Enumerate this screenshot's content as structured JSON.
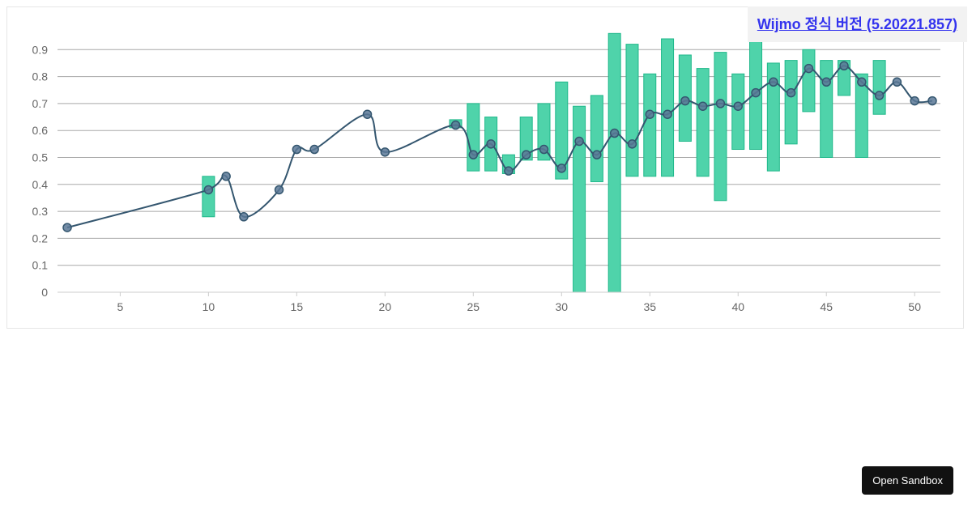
{
  "header": {
    "version_link": "Wijmo 정식 버전 (5.20221.857)"
  },
  "footer": {
    "sandbox_button": "Open Sandbox"
  },
  "colors": {
    "line": "#34566f",
    "point": "#5b7897",
    "bar_fill": "#4fd3aa",
    "bar_stroke": "#1fb88a",
    "grid": "#a8a8a8",
    "axis": "#cccccc",
    "tick": "#666666"
  },
  "chart_data": {
    "type": "line",
    "xlim": [
      0,
      51.5
    ],
    "ylim": [
      0,
      1
    ],
    "x_ticks": [
      5,
      10,
      15,
      20,
      25,
      30,
      35,
      40,
      45,
      50
    ],
    "y_ticks": [
      0,
      0.1,
      0.2,
      0.3,
      0.4,
      0.5,
      0.6,
      0.7,
      0.8,
      0.9
    ],
    "grid": true,
    "series": [
      {
        "type": "spline",
        "x": [
          2,
          10,
          11,
          12,
          14,
          15,
          16,
          19,
          20,
          24,
          25,
          26,
          27,
          28,
          29,
          30,
          31,
          32,
          33,
          34,
          35,
          36,
          37,
          38,
          39,
          40,
          41,
          42,
          43,
          44,
          45,
          46,
          47,
          48,
          49,
          50,
          51
        ],
        "y": [
          0.24,
          0.38,
          0.43,
          0.28,
          0.38,
          0.53,
          0.53,
          0.66,
          0.52,
          0.62,
          0.51,
          0.55,
          0.45,
          0.51,
          0.53,
          0.46,
          0.56,
          0.51,
          0.59,
          0.55,
          0.66,
          0.66,
          0.71,
          0.69,
          0.7,
          0.69,
          0.74,
          0.78,
          0.74,
          0.83,
          0.78,
          0.84,
          0.78,
          0.73,
          0.78,
          0.71,
          0.71
        ]
      },
      {
        "type": "range",
        "x": [
          10,
          24,
          25,
          26,
          27,
          28,
          29,
          30,
          31,
          32,
          33,
          34,
          35,
          36,
          37,
          38,
          39,
          40,
          41,
          42,
          43,
          44,
          45,
          46,
          47,
          48
        ],
        "low": [
          0.28,
          0.61,
          0.45,
          0.45,
          0.44,
          0.49,
          0.49,
          0.42,
          0.0,
          0.41,
          0.0,
          0.43,
          0.43,
          0.43,
          0.56,
          0.43,
          0.34,
          0.53,
          0.53,
          0.45,
          0.55,
          0.67,
          0.5,
          0.73,
          0.5,
          0.66
        ],
        "high": [
          0.43,
          0.64,
          0.7,
          0.65,
          0.51,
          0.65,
          0.7,
          0.78,
          0.69,
          0.73,
          0.96,
          0.92,
          0.81,
          0.94,
          0.88,
          0.83,
          0.89,
          0.81,
          0.95,
          0.85,
          0.86,
          0.9,
          0.86,
          0.86,
          0.81,
          0.86
        ]
      }
    ]
  }
}
